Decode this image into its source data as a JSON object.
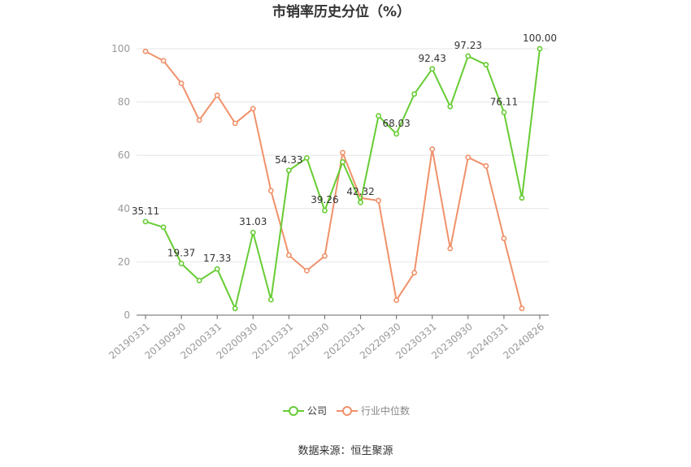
{
  "source_text": "数据来源：恒生聚源",
  "colors": {
    "company": "#66cc33",
    "industry": "#f0916a",
    "grid": "#e6e6e6",
    "axis": "#666666"
  },
  "chart_data": {
    "type": "line",
    "title": "市销率历史分位（%）",
    "ylim": [
      0,
      100
    ],
    "yticks": [
      0,
      20,
      40,
      60,
      80,
      100
    ],
    "grid": true,
    "legend_position": "bottom-center",
    "x": [
      "20190331",
      "20190630",
      "20190930",
      "20191231",
      "20200331",
      "20200630",
      "20200930",
      "20201231",
      "20210331",
      "20210630",
      "20210930",
      "20211231",
      "20220331",
      "20220630",
      "20220930",
      "20221231",
      "20230331",
      "20230630",
      "20230930",
      "20231231",
      "20240331",
      "20240630",
      "20240826"
    ],
    "xtick_labels": [
      "20190331",
      "20190930",
      "20200331",
      "20200930",
      "20210331",
      "20210930",
      "20220331",
      "20220930",
      "20230331",
      "20230930",
      "20240331",
      "20240826"
    ],
    "xtick_indices": [
      0,
      2,
      4,
      6,
      8,
      10,
      12,
      14,
      16,
      18,
      20,
      22
    ],
    "series": [
      {
        "name": "公司",
        "values": [
          35.11,
          33.0,
          19.37,
          13.0,
          17.33,
          2.5,
          31.03,
          5.8,
          54.33,
          59.0,
          39.26,
          57.5,
          42.32,
          74.8,
          68.03,
          83.0,
          92.43,
          78.3,
          97.23,
          94.0,
          76.11,
          44.0,
          100.0
        ],
        "labels": {
          "0": "35.11",
          "2": "19.37",
          "4": "17.33",
          "6": "31.03",
          "8": "54.33",
          "10": "39.26",
          "12": "42.32",
          "14": "68.03",
          "16": "92.43",
          "18": "97.23",
          "20": "76.11",
          "22": "100.00"
        }
      },
      {
        "name": "行业中位数",
        "values": [
          99.0,
          95.5,
          87.0,
          73.2,
          82.5,
          72.0,
          77.5,
          46.7,
          22.5,
          16.7,
          22.2,
          61.0,
          44.0,
          43.0,
          5.6,
          15.9,
          62.3,
          25.0,
          59.2,
          56.0,
          28.8,
          2.5,
          null
        ]
      }
    ]
  }
}
